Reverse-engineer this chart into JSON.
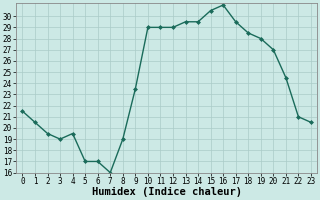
{
  "x": [
    0,
    1,
    2,
    3,
    4,
    5,
    6,
    7,
    8,
    9,
    10,
    11,
    12,
    13,
    14,
    15,
    16,
    17,
    18,
    19,
    20,
    21,
    22,
    23
  ],
  "y": [
    21.5,
    20.5,
    19.5,
    19.0,
    19.5,
    17.0,
    17.0,
    16.0,
    19.0,
    23.5,
    29.0,
    29.0,
    29.0,
    29.5,
    29.5,
    30.5,
    31.0,
    29.5,
    28.5,
    28.0,
    27.0,
    24.5,
    21.0,
    20.5
  ],
  "line_color": "#1a6b5a",
  "marker": "D",
  "marker_size": 2.0,
  "bg_color": "#cce9e5",
  "grid_color": "#aaccc8",
  "xlabel": "Humidex (Indice chaleur)",
  "ylim": [
    16,
    31
  ],
  "xlim": [
    -0.5,
    23.5
  ],
  "yticks": [
    16,
    17,
    18,
    19,
    20,
    21,
    22,
    23,
    24,
    25,
    26,
    27,
    28,
    29,
    30
  ],
  "xticks": [
    0,
    1,
    2,
    3,
    4,
    5,
    6,
    7,
    8,
    9,
    10,
    11,
    12,
    13,
    14,
    15,
    16,
    17,
    18,
    19,
    20,
    21,
    22,
    23
  ],
  "tick_fontsize": 5.5,
  "xlabel_fontsize": 7.5,
  "linewidth": 1.0
}
